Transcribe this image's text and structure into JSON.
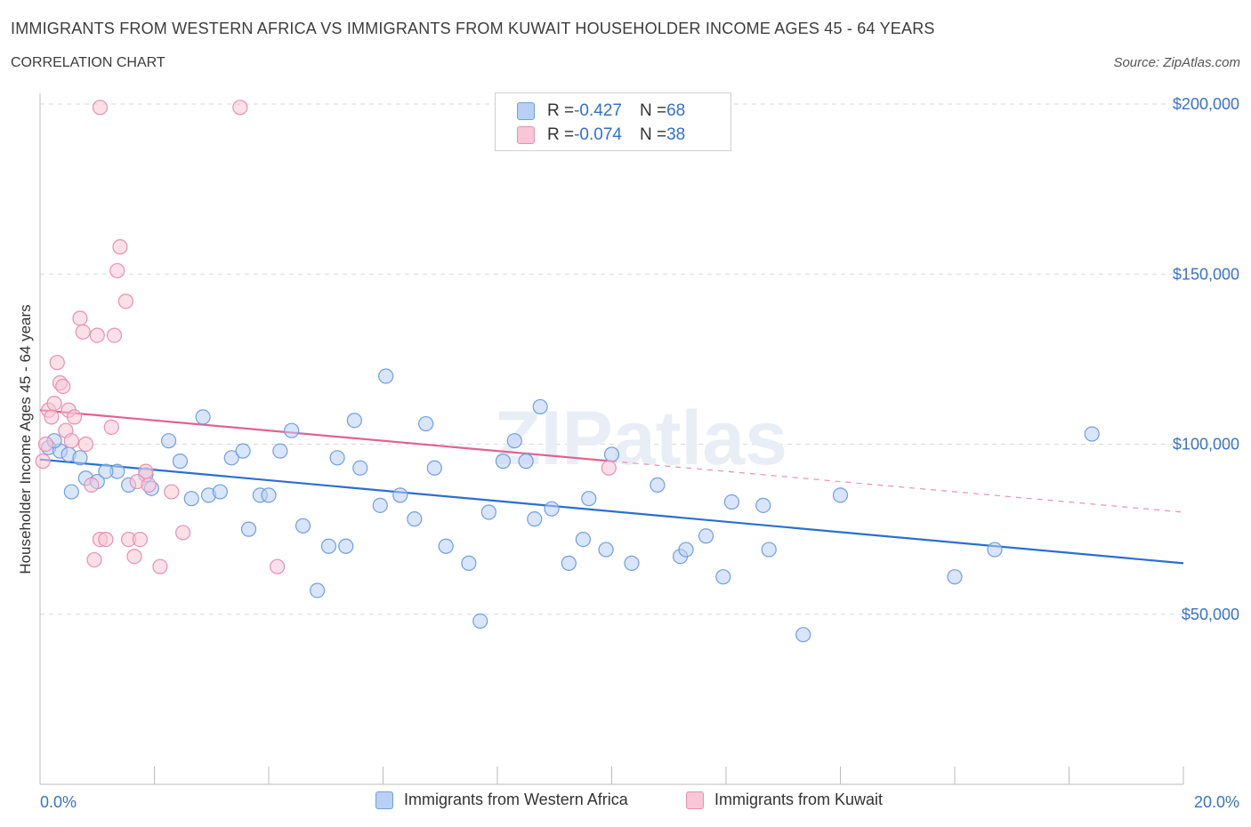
{
  "title": "IMMIGRANTS FROM WESTERN AFRICA VS IMMIGRANTS FROM KUWAIT HOUSEHOLDER INCOME AGES 45 - 64 YEARS",
  "subtitle": "CORRELATION CHART",
  "source": "Source: ZipAtlas.com",
  "watermark": "ZIPatlas",
  "colors": {
    "series1": "#6f9fe0",
    "series1_fill": "#b9d0f5",
    "series1_line": "#2a6fd1",
    "series2": "#e890b0",
    "series2_fill": "#f8c6d6",
    "series2_line": "#e06290",
    "axis_text": "#3a72c8",
    "grid": "#d8d8d8"
  },
  "stats": [
    {
      "r_label": "R = ",
      "r_value": "-0.427",
      "n_label": "N = ",
      "n_value": "68"
    },
    {
      "r_label": "R = ",
      "r_value": "-0.074",
      "n_label": "N = ",
      "n_value": "38"
    }
  ],
  "chart_data": {
    "type": "scatter",
    "xlabel": "",
    "ylabel": "Householder Income Ages 45 - 64 years",
    "xlim": [
      0,
      20
    ],
    "ylim": [
      0,
      200000
    ],
    "x_tick_labels": [
      "0.0%",
      "20.0%"
    ],
    "y_ticks": [
      50000,
      100000,
      150000,
      200000
    ],
    "y_tick_labels": [
      "$50,000",
      "$100,000",
      "$150,000",
      "$200,000"
    ],
    "grid": true,
    "legend": "bottom-center",
    "series": [
      {
        "name": "Immigrants from Western Africa",
        "points": [
          [
            0.15,
            99000
          ],
          [
            0.35,
            98000
          ],
          [
            0.5,
            97000
          ],
          [
            0.7,
            96000
          ],
          [
            0.8,
            90000
          ],
          [
            1.0,
            89000
          ],
          [
            1.35,
            92000
          ],
          [
            1.55,
            88000
          ],
          [
            1.85,
            91000
          ],
          [
            1.95,
            87000
          ],
          [
            2.25,
            101000
          ],
          [
            2.45,
            95000
          ],
          [
            2.65,
            84000
          ],
          [
            2.85,
            108000
          ],
          [
            2.95,
            85000
          ],
          [
            3.15,
            86000
          ],
          [
            3.35,
            96000
          ],
          [
            3.55,
            98000
          ],
          [
            3.65,
            75000
          ],
          [
            3.85,
            85000
          ],
          [
            4.0,
            85000
          ],
          [
            4.2,
            98000
          ],
          [
            4.4,
            104000
          ],
          [
            4.6,
            76000
          ],
          [
            4.85,
            57000
          ],
          [
            5.05,
            70000
          ],
          [
            5.2,
            96000
          ],
          [
            5.35,
            70000
          ],
          [
            5.5,
            107000
          ],
          [
            5.6,
            93000
          ],
          [
            5.95,
            82000
          ],
          [
            6.05,
            120000
          ],
          [
            6.3,
            85000
          ],
          [
            6.55,
            78000
          ],
          [
            6.75,
            106000
          ],
          [
            6.9,
            93000
          ],
          [
            7.1,
            70000
          ],
          [
            7.5,
            65000
          ],
          [
            7.7,
            48000
          ],
          [
            7.85,
            80000
          ],
          [
            8.1,
            95000
          ],
          [
            8.3,
            101000
          ],
          [
            8.5,
            95000
          ],
          [
            8.65,
            78000
          ],
          [
            8.75,
            111000
          ],
          [
            8.95,
            81000
          ],
          [
            9.25,
            65000
          ],
          [
            9.5,
            72000
          ],
          [
            9.6,
            84000
          ],
          [
            9.9,
            69000
          ],
          [
            10.0,
            97000
          ],
          [
            10.35,
            65000
          ],
          [
            10.8,
            88000
          ],
          [
            11.2,
            67000
          ],
          [
            11.3,
            69000
          ],
          [
            11.65,
            73000
          ],
          [
            11.95,
            61000
          ],
          [
            12.1,
            83000
          ],
          [
            12.65,
            82000
          ],
          [
            12.75,
            69000
          ],
          [
            13.35,
            44000
          ],
          [
            14.0,
            85000
          ],
          [
            16.0,
            61000
          ],
          [
            16.7,
            69000
          ],
          [
            18.4,
            103000
          ],
          [
            0.25,
            101000
          ],
          [
            0.55,
            86000
          ],
          [
            1.15,
            92000
          ]
        ],
        "trend": {
          "x": [
            0,
            20
          ],
          "y": [
            95500,
            65000
          ]
        }
      },
      {
        "name": "Immigrants from Kuwait",
        "points": [
          [
            0.05,
            95000
          ],
          [
            0.15,
            110000
          ],
          [
            0.2,
            108000
          ],
          [
            0.25,
            112000
          ],
          [
            0.3,
            124000
          ],
          [
            0.35,
            118000
          ],
          [
            0.45,
            104000
          ],
          [
            0.5,
            110000
          ],
          [
            0.55,
            101000
          ],
          [
            0.6,
            108000
          ],
          [
            0.7,
            137000
          ],
          [
            0.75,
            133000
          ],
          [
            0.8,
            100000
          ],
          [
            0.9,
            88000
          ],
          [
            0.95,
            66000
          ],
          [
            1.0,
            132000
          ],
          [
            1.05,
            72000
          ],
          [
            1.15,
            72000
          ],
          [
            1.25,
            105000
          ],
          [
            1.3,
            132000
          ],
          [
            1.35,
            151000
          ],
          [
            1.4,
            158000
          ],
          [
            1.5,
            142000
          ],
          [
            1.55,
            72000
          ],
          [
            1.65,
            67000
          ],
          [
            1.7,
            89000
          ],
          [
            1.75,
            72000
          ],
          [
            1.9,
            88000
          ],
          [
            2.1,
            64000
          ],
          [
            2.3,
            86000
          ],
          [
            2.5,
            74000
          ],
          [
            1.05,
            199000
          ],
          [
            3.5,
            199000
          ],
          [
            4.15,
            64000
          ],
          [
            9.95,
            93000
          ],
          [
            0.1,
            100000
          ],
          [
            0.4,
            117000
          ],
          [
            1.85,
            92000
          ]
        ],
        "trend": {
          "x": [
            0,
            10
          ],
          "y": [
            110000,
            95000
          ]
        },
        "trend_ext": {
          "x": [
            10,
            20
          ],
          "y": [
            95000,
            80000
          ]
        }
      }
    ]
  }
}
